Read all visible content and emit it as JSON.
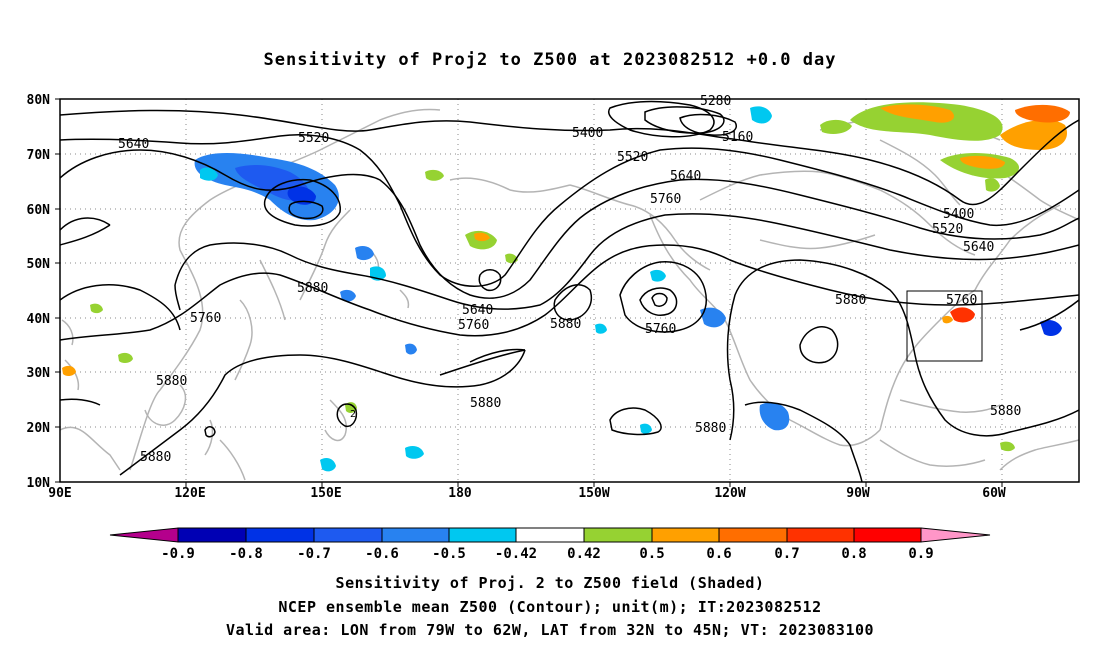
{
  "title": "Sensitivity of Proj2 to Z500 at 2023082512 +0.0 day",
  "lat_labels": [
    "80N",
    "70N",
    "60N",
    "50N",
    "40N",
    "30N",
    "20N",
    "10N"
  ],
  "lon_labels": [
    "90E",
    "120E",
    "150E",
    "180",
    "150W",
    "120W",
    "90W",
    "60W"
  ],
  "contour_labels": [
    "5640",
    "5520",
    "5400",
    "5280",
    "5160",
    "5520",
    "5640",
    "5760",
    "5400",
    "5520",
    "5640",
    "5880",
    "5760",
    "5760",
    "5640",
    "5760",
    "5880",
    "5760",
    "5880",
    "5880",
    "5880",
    "5880",
    "5880",
    "5880"
  ],
  "colorbar": {
    "labels": [
      "-0.9",
      "-0.8",
      "-0.7",
      "-0.6",
      "-0.5",
      "-0.42",
      "0.42",
      "0.5",
      "0.6",
      "0.7",
      "0.8",
      "0.9"
    ],
    "colors": [
      "#b4008c",
      "#0000b4",
      "#0032e6",
      "#1e5af0",
      "#2882f0",
      "#00c8f0",
      "#ffffff",
      "#96d232",
      "#ffa000",
      "#ff6e00",
      "#ff3200",
      "#ff0000",
      "#ff96c8"
    ]
  },
  "captions": [
    "Sensitivity of Proj. 2 to Z500 field (Shaded)",
    "NCEP ensemble mean Z500 (Contour); unit(m); IT:2023082512",
    "Valid area: LON from 79W to 62W, LAT from 32N to 45N; VT: 2023083100"
  ]
}
